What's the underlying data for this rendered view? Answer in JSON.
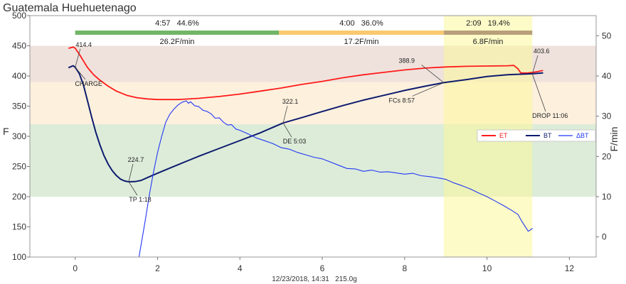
{
  "chart_data": {
    "type": "line",
    "title": "Guatemala Huehuetenago",
    "ylabel": "F",
    "y2label": "F/min",
    "footer": "12/23/2018, 14:31   215.0g",
    "xlim": [
      -1.1,
      12.65
    ],
    "ylim": [
      100,
      500
    ],
    "y2lim": [
      -5,
      55
    ],
    "xticks": [
      0,
      2,
      4,
      6,
      8,
      10,
      12
    ],
    "yticks": [
      100,
      150,
      200,
      250,
      300,
      350,
      400,
      450,
      500
    ],
    "y2ticks": [
      0,
      10,
      20,
      30,
      40,
      50
    ],
    "grid": false,
    "legend_placement": "right",
    "bands": [
      {
        "from": 390,
        "to": 450,
        "color": "#efe2dc"
      },
      {
        "from": 320,
        "to": 390,
        "color": "#fdf0dd"
      },
      {
        "from": 200,
        "to": 320,
        "color": "#dcecd9"
      }
    ],
    "highlight": {
      "from": 8.95,
      "to": 11.1,
      "color": "#fbf79a"
    },
    "phases": [
      {
        "start": 0,
        "end": 4.95,
        "duration": "4:57",
        "percent": "44.6%",
        "rate": "26.2F/min",
        "color": "#72b568"
      },
      {
        "start": 4.95,
        "end": 8.95,
        "duration": "4:00",
        "percent": "36.0%",
        "rate": "17.2F/min",
        "color": "#f8c96e"
      },
      {
        "start": 8.95,
        "end": 11.1,
        "duration": "2:09",
        "percent": "19.4%",
        "rate": "6.8F/min",
        "color": "#b8a07a"
      }
    ],
    "events": [
      {
        "label": "CHARGE",
        "value_label": "414.4",
        "x": 0,
        "y": 414.4
      },
      {
        "label": "TP 1:18",
        "value_label": "224.7",
        "x": 1.3,
        "y": 224.7
      },
      {
        "label": "DE 5:03",
        "value_label": "322.1",
        "x": 5.05,
        "y": 322.1
      },
      {
        "label": "FCs 8:57",
        "value_label": "388.9",
        "x": 8.95,
        "y": 388.9
      },
      {
        "label": "DROP 11:06",
        "value_label": "403.6",
        "x": 11.1,
        "y": 403.6
      }
    ],
    "series": [
      {
        "name": "ET",
        "color": "#ff1a1a",
        "axis": "left",
        "x": [
          -0.15,
          -0.05,
          0,
          0.1,
          0.2,
          0.3,
          0.45,
          0.6,
          0.8,
          1.0,
          1.25,
          1.5,
          1.75,
          2.0,
          2.5,
          3.0,
          3.5,
          4.0,
          4.5,
          5.0,
          5.5,
          6.0,
          6.5,
          7.0,
          7.5,
          8.0,
          8.5,
          9.0,
          9.5,
          10.0,
          10.5,
          10.65,
          10.75,
          10.82,
          11.0,
          11.2,
          11.35
        ],
        "y": [
          446,
          448,
          446,
          436,
          425,
          414,
          402,
          393,
          383,
          375,
          368,
          364,
          362,
          361,
          361,
          363,
          366,
          370,
          375,
          380,
          386,
          391,
          397,
          402,
          406,
          410,
          413,
          415,
          416,
          416.5,
          417,
          417.5,
          412,
          405,
          405,
          407,
          409
        ]
      },
      {
        "name": "BT",
        "color": "#0d1b6e",
        "axis": "left",
        "x": [
          -0.15,
          -0.05,
          0,
          0.1,
          0.2,
          0.3,
          0.4,
          0.5,
          0.6,
          0.7,
          0.8,
          0.9,
          1.0,
          1.1,
          1.2,
          1.3,
          1.45,
          1.6,
          1.8,
          2.0,
          2.25,
          2.5,
          2.75,
          3.0,
          3.5,
          4.0,
          4.5,
          5.05,
          5.5,
          6.0,
          6.5,
          7.0,
          7.5,
          8.0,
          8.5,
          8.95,
          9.5,
          10.0,
          10.5,
          11.1,
          11.35
        ],
        "y": [
          414,
          417,
          414.4,
          404,
          385,
          359,
          332,
          307,
          286,
          268,
          254,
          243,
          235,
          229,
          226,
          224.7,
          225,
          227,
          233,
          239,
          246,
          253,
          260,
          267,
          280,
          293,
          306,
          322.1,
          331,
          341,
          351,
          360,
          368,
          376,
          383,
          388.9,
          394,
          399,
          402,
          403.6,
          405
        ]
      },
      {
        "name": "ΔBT",
        "color": "#2338f5",
        "axis": "right",
        "x": [
          1.55,
          1.7,
          1.81,
          1.9,
          2.0,
          2.1,
          2.2,
          2.3,
          2.4,
          2.5,
          2.6,
          2.7,
          2.75,
          2.8,
          2.9,
          3.0,
          3.1,
          3.2,
          3.3,
          3.4,
          3.5,
          3.6,
          3.7,
          3.8,
          3.9,
          4.0,
          4.2,
          4.4,
          4.6,
          4.8,
          5.0,
          5.2,
          5.4,
          5.6,
          5.8,
          6.0,
          6.2,
          6.4,
          6.6,
          6.8,
          7.0,
          7.2,
          7.4,
          7.6,
          7.8,
          8.0,
          8.2,
          8.4,
          8.6,
          8.8,
          9.0,
          9.2,
          9.4,
          9.6,
          9.8,
          10.0,
          10.2,
          10.4,
          10.6,
          10.75,
          10.85,
          10.95,
          11.0,
          11.05,
          11.1
        ],
        "y": [
          -5,
          4,
          11,
          16,
          21,
          25,
          28.5,
          30.5,
          31.8,
          32.8,
          33.5,
          33.8,
          33.2,
          33.6,
          32.6,
          32.4,
          31.5,
          31.2,
          30.6,
          29.5,
          29.6,
          28.5,
          27.8,
          27.9,
          26.8,
          26.5,
          25.6,
          24.6,
          23.9,
          23.2,
          22.2,
          21.8,
          21.0,
          20.4,
          19.8,
          19.4,
          18.6,
          17.8,
          17.0,
          16.9,
          16.3,
          16.6,
          16.1,
          16.2,
          15.9,
          15.6,
          15.8,
          15.2,
          15.0,
          14.7,
          14.3,
          13.4,
          12.7,
          11.9,
          10.9,
          10.0,
          8.9,
          7.8,
          6.6,
          5.6,
          3.8,
          2.2,
          1.4,
          1.7,
          2.1
        ]
      }
    ]
  }
}
